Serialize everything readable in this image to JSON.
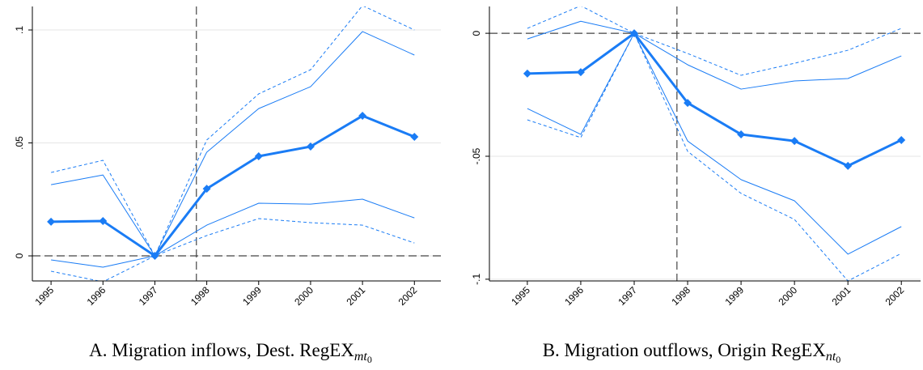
{
  "chart_data": [
    {
      "type": "line",
      "x": [
        1995,
        1996,
        1997,
        1998,
        1999,
        2000,
        2001,
        2002
      ],
      "xlim": [
        1994.64,
        2002.51
      ],
      "ylim": [
        -0.0111,
        0.1104
      ],
      "yticks": [
        0,
        {
          "value": 0.05,
          "label": ".05"
        },
        {
          "value": 0.1,
          "label": ".1"
        }
      ],
      "grid": true,
      "hline": 0,
      "vline": 1997.8,
      "caption": "A. Migration inflows, Dest. RegEX",
      "caption_sub": "mt",
      "caption_subsub": "0",
      "series": [
        {
          "color": "#1a7cf5",
          "width": 3,
          "markers": true,
          "values": [
            0.0151,
            0.0154,
            0,
            0.0297,
            0.0441,
            0.0484,
            0.062,
            0.0527
          ]
        },
        {
          "color": "#1a7cf5",
          "width": 1,
          "values": [
            0.0315,
            0.0358,
            0,
            0.0459,
            0.0652,
            0.0749,
            0.0993,
            0.0889
          ]
        },
        {
          "color": "#1a7cf5",
          "width": 1,
          "values": [
            -0.0018,
            -0.005,
            0,
            0.0136,
            0.0233,
            0.0229,
            0.0251,
            0.0168
          ]
        },
        {
          "color": "#1a7cf5",
          "width": 1,
          "dashed": true,
          "values": [
            0.0369,
            0.0423,
            0,
            0.0513,
            0.0717,
            0.0824,
            0.1108,
            0.1
          ]
        },
        {
          "color": "#1a7cf5",
          "width": 1,
          "dashed": true,
          "values": [
            -0.0068,
            -0.0115,
            0,
            0.009,
            0.0165,
            0.0147,
            0.0136,
            0.0057
          ]
        }
      ]
    },
    {
      "type": "line",
      "x": [
        1995,
        1996,
        1997,
        1998,
        1999,
        2000,
        2001,
        2002
      ],
      "xlim": [
        1994.29,
        2002.36
      ],
      "ylim": [
        -0.1007,
        0.0109
      ],
      "yticks": [
        0,
        {
          "value": -0.05,
          "label": "-.05"
        },
        {
          "value": -0.1,
          "label": "-.1"
        }
      ],
      "grid": true,
      "hline": 0,
      "vline": 1997.8,
      "caption": "B. Migration outflows, Origin RegEX",
      "caption_sub": "nt",
      "caption_subsub": "0",
      "series": [
        {
          "color": "#1a7cf5",
          "width": 3,
          "markers": true,
          "values": [
            -0.0164,
            -0.0158,
            0,
            -0.0283,
            -0.0411,
            -0.0438,
            -0.0539,
            -0.0434
          ]
        },
        {
          "color": "#1a7cf5",
          "width": 1,
          "values": [
            -0.0023,
            0.0049,
            0,
            -0.0128,
            -0.0227,
            -0.0194,
            -0.0184,
            -0.0092
          ]
        },
        {
          "color": "#1a7cf5",
          "width": 1,
          "values": [
            -0.0306,
            -0.0411,
            0,
            -0.0438,
            -0.0595,
            -0.0681,
            -0.0898,
            -0.0786
          ]
        },
        {
          "color": "#1a7cf5",
          "width": 1,
          "dashed": true,
          "values": [
            0.002,
            0.0112,
            0,
            -0.0082,
            -0.0171,
            -0.0122,
            -0.0069,
            0.002
          ]
        },
        {
          "color": "#1a7cf5",
          "width": 1,
          "dashed": true,
          "values": [
            -0.0352,
            -0.0424,
            0,
            -0.048,
            -0.0651,
            -0.0757,
            -0.1007,
            -0.0895
          ]
        }
      ]
    }
  ]
}
